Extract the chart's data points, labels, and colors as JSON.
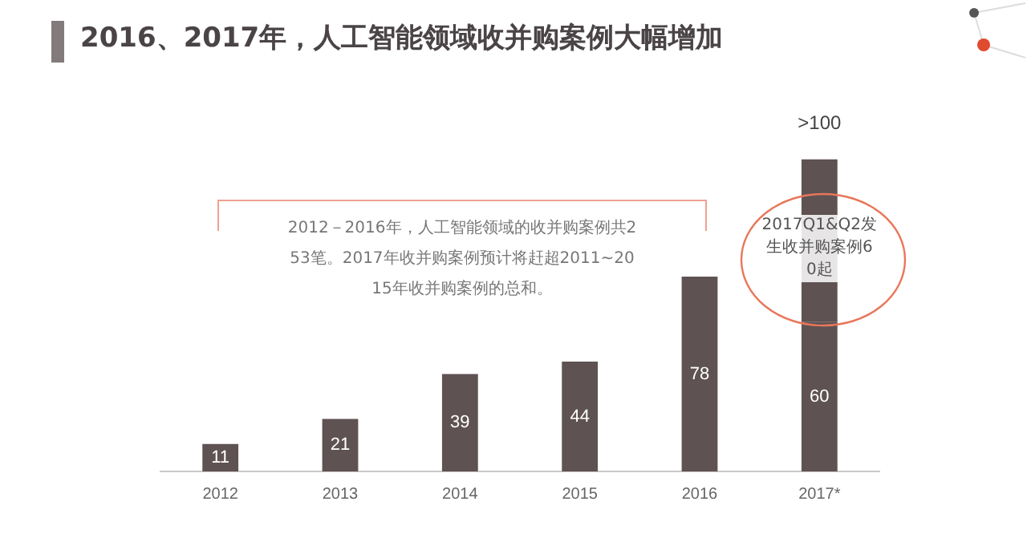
{
  "chart_data": {
    "type": "bar",
    "title": "2016、2017年，人工智能领域收并购案例大幅增加",
    "categories": [
      "2012",
      "2013",
      "2014",
      "2015",
      "2016",
      "2017*"
    ],
    "stacked": true,
    "series": [
      {
        "color": "#5f5253",
        "values": [
          11,
          21,
          39,
          44,
          78,
          60
        ]
      },
      {
        "color": "#5f5253",
        "values": [
          null,
          null,
          null,
          null,
          null,
          65
        ],
        "value_labels": [
          null,
          null,
          null,
          null,
          null,
          null
        ]
      }
    ],
    "data_labels": true,
    "totals": [
      null,
      null,
      null,
      null,
      null,
      ">100"
    ],
    "tick_labels": "x",
    "grid": false,
    "legend": false,
    "annotations": [
      "2012－2016年，人工智能领域的收并购案例共253笔。2017年收并购案例预计将赶超2011~2015年收并购案例的总和。",
      "2017Q1&Q2发生收并购案例60起"
    ]
  }
}
